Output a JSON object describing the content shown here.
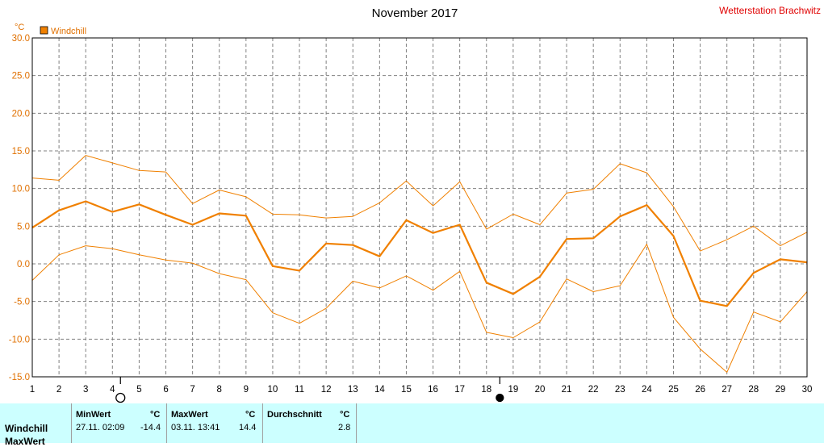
{
  "chart_data": {
    "type": "line",
    "title": "November 2017",
    "station": "Wetterstation Brachwitz",
    "unit": "°C",
    "legend": [
      "Windchill"
    ],
    "x": [
      1,
      2,
      3,
      4,
      5,
      6,
      7,
      8,
      9,
      10,
      11,
      12,
      13,
      14,
      15,
      16,
      17,
      18,
      19,
      20,
      21,
      22,
      23,
      24,
      25,
      26,
      27,
      28,
      29,
      30
    ],
    "xlim": [
      1,
      30
    ],
    "ylim": [
      -15,
      30
    ],
    "yticks": [
      "-15.0",
      "-10.0",
      "-5.0",
      "0.0",
      "5.0",
      "10.0",
      "15.0",
      "20.0",
      "25.0",
      "30.0"
    ],
    "grid": true,
    "legend_position": "top-left",
    "colors": {
      "series": "#f08000",
      "grid": "#808080",
      "station": "#e00000"
    },
    "moon_phases": [
      {
        "day": 4.3,
        "phase": "full-moon"
      },
      {
        "day": 18.5,
        "phase": "new-moon"
      }
    ],
    "series": [
      {
        "name": "Windchill",
        "role": "mean",
        "values": [
          4.8,
          7.1,
          8.3,
          6.9,
          7.9,
          6.5,
          5.2,
          6.7,
          6.4,
          -0.3,
          -0.9,
          2.7,
          2.5,
          1.0,
          5.8,
          4.1,
          5.2,
          -2.5,
          -4.0,
          -1.7,
          3.3,
          3.4,
          6.3,
          7.8,
          3.7,
          -4.9,
          -5.6,
          -1.2,
          0.6,
          0.2
        ]
      },
      {
        "role": "max",
        "values": [
          11.4,
          11.1,
          14.4,
          13.4,
          12.4,
          12.2,
          8.0,
          9.8,
          8.9,
          6.6,
          6.5,
          6.1,
          6.3,
          8.1,
          11.0,
          7.7,
          10.9,
          4.6,
          6.6,
          5.2,
          9.4,
          9.9,
          13.3,
          12.1,
          7.6,
          1.7,
          3.2,
          5.0,
          2.4,
          4.2
        ]
      },
      {
        "role": "min",
        "values": [
          -2.2,
          1.2,
          2.4,
          2.0,
          1.2,
          0.5,
          0.1,
          -1.3,
          -2.1,
          -6.5,
          -7.9,
          -5.9,
          -2.3,
          -3.2,
          -1.6,
          -3.5,
          -1.0,
          -9.1,
          -9.8,
          -7.7,
          -2.0,
          -3.7,
          -2.9,
          2.6,
          -7.1,
          -11.3,
          -14.4,
          -6.4,
          -7.7,
          -3.7
        ]
      }
    ]
  },
  "stats": {
    "row_label": "Windchill",
    "row_label_2": "MaxWert",
    "min_header": "MinWert",
    "max_header": "MaxWert",
    "avg_header": "Durchschnitt",
    "unit_header": "°C",
    "min_datetime": "27.11.  02:09",
    "min_value": "-14.4",
    "max_datetime": "03.11.  13:41",
    "max_value": "14.4",
    "avg_value": "2.8"
  }
}
